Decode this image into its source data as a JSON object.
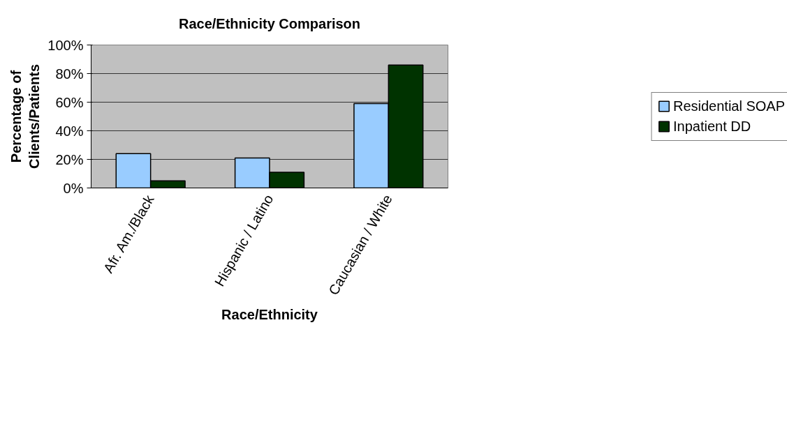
{
  "chart_data": {
    "type": "bar",
    "title": "Race/Ethnicity Comparison",
    "xlabel": "Race/Ethnicity",
    "ylabel": "Percentage of\nClients/Patients",
    "categories": [
      "Afr. Am./Black",
      "Hispanic / Latino",
      "Caucasian / White"
    ],
    "series": [
      {
        "name": "Residential SOAP",
        "color": "#99ccff",
        "values": [
          24,
          21,
          59
        ]
      },
      {
        "name": "Inpatient DD",
        "color": "#003300",
        "values": [
          5,
          11,
          86
        ]
      }
    ],
    "ylim": [
      0,
      100
    ],
    "yticks": [
      {
        "value": 0,
        "label": "0%"
      },
      {
        "value": 20,
        "label": "20%"
      },
      {
        "value": 40,
        "label": "40%"
      },
      {
        "value": 60,
        "label": "60%"
      },
      {
        "value": 80,
        "label": "80%"
      },
      {
        "value": 100,
        "label": "100%"
      }
    ],
    "grid": "y",
    "legend": "right"
  }
}
